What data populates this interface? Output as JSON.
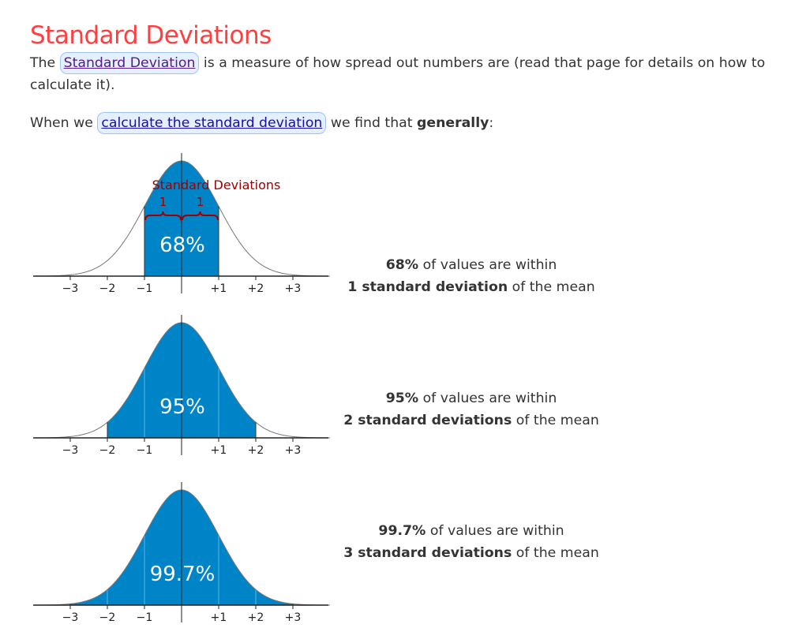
{
  "page": {
    "title": "Standard Deviations",
    "intro": {
      "before": "The ",
      "link": "Standard Deviation",
      "after": " is a measure of how spread out numbers are (read that page for details on how to calculate it)."
    },
    "general": {
      "before": "When we ",
      "link": "calculate the standard deviation",
      "middle": " we find that ",
      "bold": "generally",
      "after": ":"
    }
  },
  "colors": {
    "title": "#ff3f3f",
    "fill": "#0084c8",
    "brace": "#a00000",
    "curve": "#777777"
  },
  "tick_labels": [
    "−3",
    "−2",
    "−1",
    "+1",
    "+2",
    "+3"
  ],
  "annotation": {
    "heading": "Standard Deviations",
    "left": "1",
    "right": "1"
  },
  "chart_data": [
    {
      "type": "area",
      "distribution": "normal",
      "shaded_range_sd": [
        -1,
        1
      ],
      "center_label": "68%",
      "xlim": [
        -4,
        4
      ],
      "x_ticks": [
        -3,
        -2,
        -1,
        1,
        2,
        3
      ],
      "annotated": true
    },
    {
      "type": "area",
      "distribution": "normal",
      "shaded_range_sd": [
        -2,
        2
      ],
      "center_label": "95%",
      "xlim": [
        -4,
        4
      ],
      "x_ticks": [
        -3,
        -2,
        -1,
        1,
        2,
        3
      ],
      "annotated": false
    },
    {
      "type": "area",
      "distribution": "normal",
      "shaded_range_sd": [
        -3,
        3
      ],
      "center_label": "99.7%",
      "xlim": [
        -4,
        4
      ],
      "x_ticks": [
        -3,
        -2,
        -1,
        1,
        2,
        3
      ],
      "annotated": false
    }
  ],
  "captions": [
    {
      "pct": "68%",
      "line1_rest": " of values are within",
      "bold2": "1 standard deviation",
      "rest2": " of the mean"
    },
    {
      "pct": "95%",
      "line1_rest": " of values are within",
      "bold2": "2 standard deviations",
      "rest2": " of the mean"
    },
    {
      "pct": "99.7%",
      "line1_rest": " of values are within",
      "bold2": "3 standard deviations",
      "rest2": " of the mean"
    }
  ]
}
